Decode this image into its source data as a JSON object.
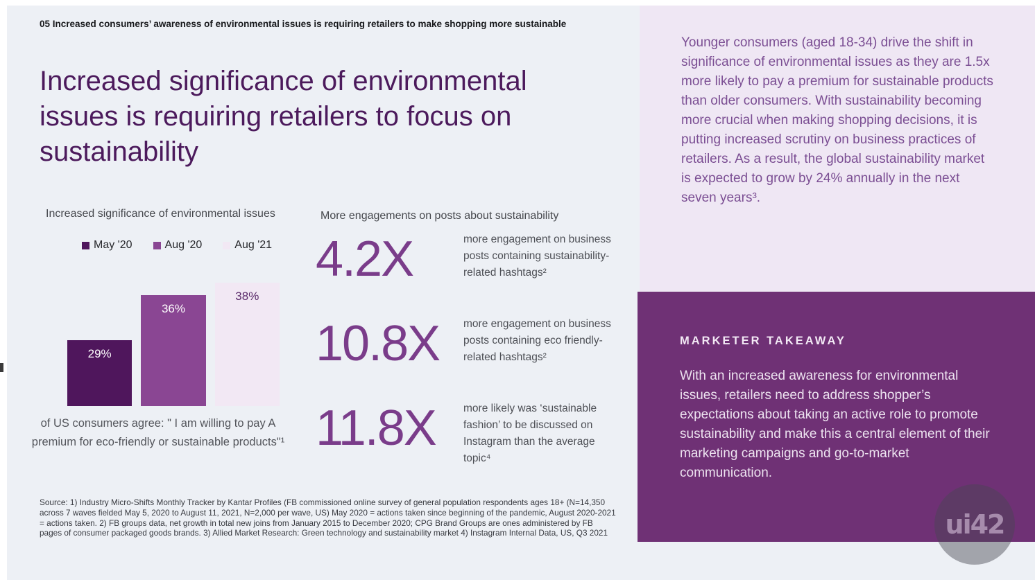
{
  "slide": {
    "kicker": "05 Increased consumers’ awareness of environmental issues is requiring retailers to make shopping more sustainable",
    "title": "Increased significance of environmental issues is requiring retailers to focus on sustainability"
  },
  "chart_data": {
    "type": "bar",
    "title": "Increased significance of environmental issues",
    "categories": [
      "May '20",
      "Aug '20",
      "Aug '21"
    ],
    "values": [
      29,
      36,
      38
    ],
    "value_labels": [
      "29%",
      "36%",
      "38%"
    ],
    "unit": "%",
    "legend_position": "top",
    "grid": "off",
    "axis_labels_shown": false,
    "bar_colors": [
      "#4F165C",
      "#8A4693",
      "#F2E8F4"
    ],
    "bar_label_colors": [
      "#FFFFFF",
      "#FFFFFF",
      "#5A2A6A"
    ],
    "caption": "of US consumers agree: \" I am willing to pay A premium for eco-friendly or sustainable products\"¹"
  },
  "stats": {
    "title": "More engagements on posts about sustainability",
    "items": [
      {
        "value": "4.2X",
        "desc": "more engagement on business posts containing sustainability-related hashtags²"
      },
      {
        "value": "10.8X",
        "desc": "more engagement on business posts containing eco friendly-related hashtags²"
      },
      {
        "value": "11.8X",
        "desc": "more likely was ‘sustainable fashion’ to be discussed on Instagram than the average topic⁴"
      }
    ]
  },
  "source": "Source: 1) Industry Micro-Shifts Monthly Tracker by Kantar Profiles (FB commissioned online survey of general population respondents ages 18+ (N=14,350 across 7 waves fielded May 5, 2020 to August 11, 2021, N=2,000 per wave, US) May 2020 = actions taken since beginning of the pandemic, August 2020-2021 = actions taken. 2) FB groups data, net growth in total new joins from January 2015 to December 2020; CPG Brand Groups are ones administered by FB pages of consumer packaged goods brands. 3) Allied Market Research: Green technology and sustainability market 4) Instagram Internal Data, US, Q3 2021",
  "insight": {
    "text": "Younger consumers (aged 18-34) drive the shift in significance of environmental issues as they are 1.5x more likely to pay a premium for sustainable products than older consumers. With sustainability becoming more crucial when making shopping decisions, it is putting increased scrutiny on business practices of retailers. As a result, the global sustainability market is expected to grow by 24% annually in the next seven years³."
  },
  "takeaway": {
    "heading": "MARKETER TAKEAWAY",
    "text": "With an increased awareness for environmental issues, retailers need to address shopper’s expectations about taking an active role to promote sustainability and make this a central element of their marketing campaigns and go-to-market communication."
  },
  "logo": {
    "text": "ui42"
  },
  "colors": {
    "page_background": "#EDF0F5",
    "title_purple": "#4C1A5C",
    "stat_purple": "#7A3C8A",
    "insight_panel_bg": "#EFE7F4",
    "insight_text": "#7B4E93",
    "takeaway_panel_bg": "#6F3175",
    "takeaway_text": "#EDE3F0"
  }
}
